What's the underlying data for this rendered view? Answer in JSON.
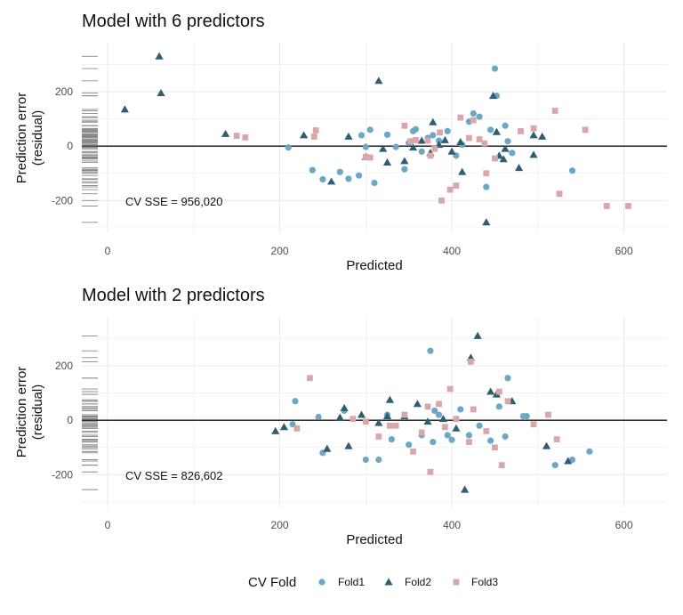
{
  "colors": {
    "Fold1": "#6aa8c6",
    "Fold2": "#2f5e70",
    "Fold3": "#dba6aa",
    "grid": "#ebebeb",
    "rug": "#8a8a8a",
    "zero": "#111111"
  },
  "legend": {
    "title": "CV Fold",
    "entries": [
      {
        "name": "Fold1",
        "shape": "circle"
      },
      {
        "name": "Fold2",
        "shape": "triangle"
      },
      {
        "name": "Fold3",
        "shape": "square"
      }
    ],
    "placement": "bottom"
  },
  "chart_data": [
    {
      "type": "scatter",
      "title": "Model with 6 predictors",
      "xlabel": "Predicted",
      "ylabel": "Prediction error\n(residual)",
      "xlim": [
        -30,
        650
      ],
      "ylim": [
        -320,
        380
      ],
      "xticks": [
        0,
        200,
        400,
        600
      ],
      "yticks": [
        -200,
        0,
        200
      ],
      "annotation": "CV SSE = 956,020",
      "series": [
        {
          "name": "Fold1",
          "points": [
            [
              210,
              -5
            ],
            [
              238,
              -88
            ],
            [
              250,
              -122
            ],
            [
              270,
              -95
            ],
            [
              280,
              -120
            ],
            [
              292,
              -108
            ],
            [
              295,
              40
            ],
            [
              300,
              -3
            ],
            [
              305,
              60
            ],
            [
              310,
              -135
            ],
            [
              325,
              42
            ],
            [
              335,
              -3
            ],
            [
              345,
              -85
            ],
            [
              350,
              12
            ],
            [
              355,
              55
            ],
            [
              358,
              62
            ],
            [
              365,
              -20
            ],
            [
              372,
              30
            ],
            [
              378,
              40
            ],
            [
              385,
              20
            ],
            [
              395,
              55
            ],
            [
              405,
              -35
            ],
            [
              412,
              5
            ],
            [
              420,
              90
            ],
            [
              425,
              120
            ],
            [
              432,
              108
            ],
            [
              440,
              -150
            ],
            [
              445,
              60
            ],
            [
              450,
              285
            ],
            [
              452,
              185
            ],
            [
              462,
              75
            ],
            [
              465,
              18
            ],
            [
              470,
              -25
            ],
            [
              540,
              -90
            ]
          ]
        },
        {
          "name": "Fold2",
          "points": [
            [
              20,
              135
            ],
            [
              60,
              330
            ],
            [
              62,
              195
            ],
            [
              137,
              45
            ],
            [
              228,
              40
            ],
            [
              260,
              -130
            ],
            [
              280,
              35
            ],
            [
              300,
              -40
            ],
            [
              315,
              240
            ],
            [
              320,
              -10
            ],
            [
              325,
              -60
            ],
            [
              345,
              -55
            ],
            [
              355,
              -5
            ],
            [
              365,
              20
            ],
            [
              375,
              -25
            ],
            [
              378,
              88
            ],
            [
              385,
              5
            ],
            [
              392,
              22
            ],
            [
              400,
              -20
            ],
            [
              410,
              15
            ],
            [
              412,
              -95
            ],
            [
              440,
              -280
            ],
            [
              448,
              185
            ],
            [
              452,
              52
            ],
            [
              455,
              -35
            ],
            [
              460,
              -48
            ],
            [
              462,
              -10
            ],
            [
              478,
              -80
            ],
            [
              495,
              40
            ],
            [
              495,
              -32
            ],
            [
              505,
              35
            ]
          ]
        },
        {
          "name": "Fold3",
          "points": [
            [
              150,
              38
            ],
            [
              160,
              32
            ],
            [
              240,
              35
            ],
            [
              242,
              58
            ],
            [
              300,
              -40
            ],
            [
              305,
              -42
            ],
            [
              345,
              75
            ],
            [
              352,
              18
            ],
            [
              358,
              22
            ],
            [
              372,
              20
            ],
            [
              375,
              -35
            ],
            [
              380,
              -10
            ],
            [
              386,
              50
            ],
            [
              388,
              -200
            ],
            [
              398,
              -160
            ],
            [
              405,
              -145
            ],
            [
              410,
              105
            ],
            [
              420,
              30
            ],
            [
              425,
              95
            ],
            [
              432,
              25
            ],
            [
              438,
              10
            ],
            [
              440,
              -100
            ],
            [
              450,
              -45
            ],
            [
              480,
              55
            ],
            [
              495,
              65
            ],
            [
              520,
              130
            ],
            [
              525,
              -175
            ],
            [
              555,
              60
            ],
            [
              580,
              -220
            ],
            [
              605,
              -220
            ]
          ]
        }
      ]
    },
    {
      "type": "scatter",
      "title": "Model with 2 predictors",
      "xlabel": "Predicted",
      "ylabel": "Prediction error\n(residual)",
      "xlim": [
        -30,
        650
      ],
      "ylim": [
        -320,
        380
      ],
      "xticks": [
        0,
        200,
        400,
        600
      ],
      "yticks": [
        -200,
        0,
        200
      ],
      "annotation": "CV SSE = 826,602",
      "series": [
        {
          "name": "Fold1",
          "points": [
            [
              215,
              -15
            ],
            [
              218,
              70
            ],
            [
              245,
              12
            ],
            [
              250,
              -120
            ],
            [
              275,
              35
            ],
            [
              300,
              -145
            ],
            [
              315,
              -145
            ],
            [
              325,
              20
            ],
            [
              330,
              -70
            ],
            [
              345,
              12
            ],
            [
              350,
              -90
            ],
            [
              365,
              -55
            ],
            [
              375,
              255
            ],
            [
              378,
              -80
            ],
            [
              380,
              35
            ],
            [
              385,
              20
            ],
            [
              395,
              -55
            ],
            [
              400,
              -72
            ],
            [
              410,
              40
            ],
            [
              420,
              -55
            ],
            [
              432,
              -20
            ],
            [
              445,
              -75
            ],
            [
              455,
              50
            ],
            [
              462,
              -60
            ],
            [
              465,
              155
            ],
            [
              483,
              15
            ],
            [
              487,
              15
            ],
            [
              520,
              -165
            ],
            [
              540,
              -145
            ],
            [
              560,
              -115
            ]
          ]
        },
        {
          "name": "Fold2",
          "points": [
            [
              195,
              -40
            ],
            [
              205,
              -25
            ],
            [
              255,
              -105
            ],
            [
              270,
              10
            ],
            [
              275,
              45
            ],
            [
              280,
              -95
            ],
            [
              295,
              20
            ],
            [
              315,
              -10
            ],
            [
              325,
              15
            ],
            [
              328,
              75
            ],
            [
              345,
              15
            ],
            [
              360,
              60
            ],
            [
              372,
              -5
            ],
            [
              390,
              5
            ],
            [
              405,
              -30
            ],
            [
              415,
              -255
            ],
            [
              422,
              230
            ],
            [
              430,
              310
            ],
            [
              445,
              105
            ],
            [
              452,
              95
            ],
            [
              470,
              70
            ],
            [
              510,
              -95
            ],
            [
              535,
              -150
            ]
          ]
        },
        {
          "name": "Fold3",
          "points": [
            [
              220,
              -30
            ],
            [
              235,
              155
            ],
            [
              285,
              5
            ],
            [
              300,
              -5
            ],
            [
              315,
              -60
            ],
            [
              328,
              -20
            ],
            [
              335,
              -20
            ],
            [
              345,
              20
            ],
            [
              355,
              -115
            ],
            [
              365,
              -45
            ],
            [
              372,
              50
            ],
            [
              375,
              -190
            ],
            [
              385,
              60
            ],
            [
              392,
              -25
            ],
            [
              398,
              115
            ],
            [
              405,
              5
            ],
            [
              420,
              -80
            ],
            [
              422,
              215
            ],
            [
              425,
              40
            ],
            [
              440,
              -40
            ],
            [
              450,
              -100
            ],
            [
              455,
              105
            ],
            [
              458,
              -165
            ],
            [
              465,
              70
            ],
            [
              495,
              -15
            ],
            [
              512,
              20
            ],
            [
              522,
              -70
            ]
          ]
        }
      ]
    }
  ]
}
